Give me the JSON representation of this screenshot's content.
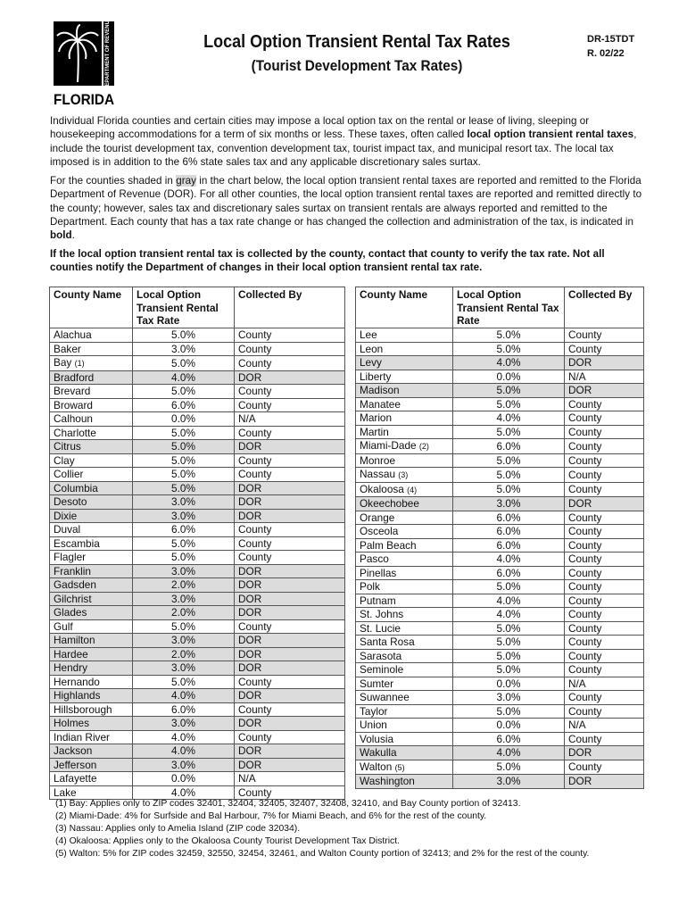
{
  "header": {
    "logo_text": "FLORIDA",
    "logo_side_text": "Department of Revenue",
    "title": "Local Option Transient Rental Tax Rates",
    "subtitle": "(Tourist Development Tax Rates)",
    "form_number": "DR-15TDT",
    "revision": "R. 02/22"
  },
  "intro": {
    "p1_a": "Individual Florida counties and certain cities may impose a local option tax on the rental or lease of living, sleeping or housekeeping accommodations for a term of six months or less. These taxes, often called ",
    "p1_bold": "local option transient rental taxes",
    "p1_b": ", include the tourist development tax, convention development tax, tourist impact tax, and municipal resort tax. The local tax imposed is in addition to the 6% state sales tax and any applicable discretionary sales surtax.",
    "p2_a": "For the counties shaded in ",
    "p2_gray": "gray",
    "p2_b": " in the chart below, the local option transient rental taxes are reported and remitted to the Florida Department of Revenue (DOR). For all other counties, the local option transient rental taxes are reported and remitted directly to the county; however, sales tax and discretionary sales surtax on transient rentals are always reported and remitted to the Department. Each county that has a tax rate change or has changed the collection and administration of the tax, is indicated in ",
    "p2_bold": "bold",
    "p2_c": ".",
    "p3": "If the local option transient rental tax is collected by the county, contact that county to verify the tax rate. Not all counties notify the Department of changes in their local option transient rental tax rate."
  },
  "table": {
    "columns": [
      "County Name",
      "Local Option Transient Rental Tax Rate",
      "Collected By"
    ],
    "shade_color": "#dcdcdc",
    "left": [
      {
        "name": "Alachua",
        "rate": "5.0%",
        "by": "County"
      },
      {
        "name": "Baker",
        "rate": "3.0%",
        "by": "County"
      },
      {
        "name": "Bay",
        "note": "(1)",
        "rate": "5.0%",
        "by": "County"
      },
      {
        "name": "Bradford",
        "rate": "4.0%",
        "by": "DOR"
      },
      {
        "name": "Brevard",
        "rate": "5.0%",
        "by": "County"
      },
      {
        "name": "Broward",
        "rate": "6.0%",
        "by": "County"
      },
      {
        "name": "Calhoun",
        "rate": "0.0%",
        "by": "N/A"
      },
      {
        "name": "Charlotte",
        "rate": "5.0%",
        "by": "County"
      },
      {
        "name": "Citrus",
        "rate": "5.0%",
        "by": "DOR"
      },
      {
        "name": "Clay",
        "rate": "5.0%",
        "by": "County"
      },
      {
        "name": "Collier",
        "rate": "5.0%",
        "by": "County"
      },
      {
        "name": "Columbia",
        "rate": "5.0%",
        "by": "DOR"
      },
      {
        "name": "Desoto",
        "rate": "3.0%",
        "by": "DOR"
      },
      {
        "name": "Dixie",
        "rate": "3.0%",
        "by": "DOR"
      },
      {
        "name": "Duval",
        "rate": "6.0%",
        "by": "County"
      },
      {
        "name": "Escambia",
        "rate": "5.0%",
        "by": "County"
      },
      {
        "name": "Flagler",
        "rate": "5.0%",
        "by": "County"
      },
      {
        "name": "Franklin",
        "rate": "3.0%",
        "by": "DOR"
      },
      {
        "name": "Gadsden",
        "rate": "2.0%",
        "by": "DOR"
      },
      {
        "name": "Gilchrist",
        "rate": "3.0%",
        "by": "DOR"
      },
      {
        "name": "Glades",
        "rate": "2.0%",
        "by": "DOR"
      },
      {
        "name": "Gulf",
        "rate": "5.0%",
        "by": "County"
      },
      {
        "name": "Hamilton",
        "rate": "3.0%",
        "by": "DOR"
      },
      {
        "name": "Hardee",
        "rate": "2.0%",
        "by": "DOR"
      },
      {
        "name": "Hendry",
        "rate": "3.0%",
        "by": "DOR"
      },
      {
        "name": "Hernando",
        "rate": "5.0%",
        "by": "County"
      },
      {
        "name": "Highlands",
        "rate": "4.0%",
        "by": "DOR"
      },
      {
        "name": "Hillsborough",
        "rate": "6.0%",
        "by": "County"
      },
      {
        "name": "Holmes",
        "rate": "3.0%",
        "by": "DOR"
      },
      {
        "name": "Indian River",
        "rate": "4.0%",
        "by": "County"
      },
      {
        "name": "Jackson",
        "rate": "4.0%",
        "by": "DOR"
      },
      {
        "name": "Jefferson",
        "rate": "3.0%",
        "by": "DOR"
      },
      {
        "name": "Lafayette",
        "rate": "0.0%",
        "by": "N/A"
      },
      {
        "name": "Lake",
        "rate": "4.0%",
        "by": "County"
      }
    ],
    "right": [
      {
        "name": "Lee",
        "rate": "5.0%",
        "by": "County"
      },
      {
        "name": "Leon",
        "rate": "5.0%",
        "by": "County"
      },
      {
        "name": "Levy",
        "rate": "4.0%",
        "by": "DOR"
      },
      {
        "name": "Liberty",
        "rate": "0.0%",
        "by": "N/A"
      },
      {
        "name": "Madison",
        "rate": "5.0%",
        "by": "DOR"
      },
      {
        "name": "Manatee",
        "rate": "5.0%",
        "by": "County"
      },
      {
        "name": "Marion",
        "rate": "4.0%",
        "by": "County"
      },
      {
        "name": "Martin",
        "rate": "5.0%",
        "by": "County"
      },
      {
        "name": "Miami-Dade",
        "note": "(2)",
        "rate": "6.0%",
        "by": "County"
      },
      {
        "name": "Monroe",
        "rate": "5.0%",
        "by": "County"
      },
      {
        "name": "Nassau",
        "note": "(3)",
        "rate": "5.0%",
        "by": "County"
      },
      {
        "name": "Okaloosa",
        "note": "(4)",
        "rate": "5.0%",
        "by": "County"
      },
      {
        "name": "Okeechobee",
        "rate": "3.0%",
        "by": "DOR"
      },
      {
        "name": "Orange",
        "rate": "6.0%",
        "by": "County"
      },
      {
        "name": "Osceola",
        "rate": "6.0%",
        "by": "County"
      },
      {
        "name": "Palm Beach",
        "rate": "6.0%",
        "by": "County"
      },
      {
        "name": "Pasco",
        "rate": "4.0%",
        "by": "County"
      },
      {
        "name": "Pinellas",
        "rate": "6.0%",
        "by": "County"
      },
      {
        "name": "Polk",
        "rate": "5.0%",
        "by": "County"
      },
      {
        "name": "Putnam",
        "rate": "4.0%",
        "by": "County"
      },
      {
        "name": "St. Johns",
        "rate": "4.0%",
        "by": "County"
      },
      {
        "name": "St. Lucie",
        "rate": "5.0%",
        "by": "County"
      },
      {
        "name": "Santa Rosa",
        "rate": "5.0%",
        "by": "County"
      },
      {
        "name": "Sarasota",
        "rate": "5.0%",
        "by": "County"
      },
      {
        "name": "Seminole",
        "rate": "5.0%",
        "by": "County"
      },
      {
        "name": "Sumter",
        "rate": "0.0%",
        "by": "N/A"
      },
      {
        "name": "Suwannee",
        "rate": "3.0%",
        "by": "County"
      },
      {
        "name": "Taylor",
        "rate": "5.0%",
        "by": "County"
      },
      {
        "name": "Union",
        "rate": "0.0%",
        "by": "N/A"
      },
      {
        "name": "Volusia",
        "rate": "6.0%",
        "by": "County"
      },
      {
        "name": "Wakulla",
        "rate": "4.0%",
        "by": "DOR"
      },
      {
        "name": "Walton",
        "note": "(5)",
        "rate": "5.0%",
        "by": "County"
      },
      {
        "name": "Washington",
        "rate": "3.0%",
        "by": "DOR"
      }
    ]
  },
  "footnotes": [
    "(1) Bay: Applies only to ZIP codes 32401, 32404, 32405, 32407, 32408, 32410, and Bay County portion of 32413.",
    "(2) Miami-Dade: 4% for Surfside and Bal Harbour, 7% for Miami Beach, and 6% for the rest of the county.",
    "(3) Nassau: Applies only to Amelia Island (ZIP code 32034).",
    "(4) Okaloosa: Applies only to the Okaloosa County Tourist Development Tax District.",
    "(5) Walton: 5% for ZIP codes 32459, 32550, 32454, 32461, and Walton County portion of 32413; and 2% for the rest of the county."
  ]
}
